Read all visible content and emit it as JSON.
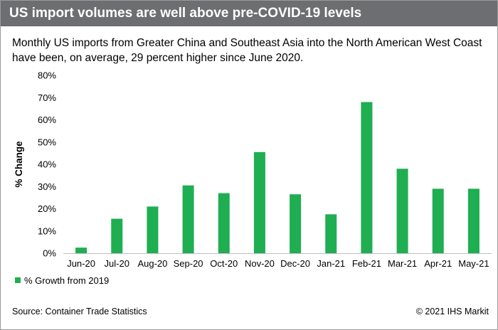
{
  "header": {
    "title": "US import volumes are well above pre-COVID-19 levels"
  },
  "subtitle": {
    "line1": "Monthly US imports from Greater China and Southeast Asia into the North American West Coast",
    "line2": "have been, on average, 29 percent higher since June 2020."
  },
  "footer": {
    "source": "Source: Container Trade Statistics",
    "copyright": "© 2021 IHS Markit"
  },
  "chart_data": {
    "type": "bar",
    "title": "",
    "xlabel": "",
    "ylabel": "% Change",
    "categories": [
      "Jun-20",
      "Jul-20",
      "Aug-20",
      "Sep-20",
      "Oct-20",
      "Nov-20",
      "Dec-20",
      "Jan-21",
      "Feb-21",
      "Mar-21",
      "Apr-21",
      "May-21"
    ],
    "series": [
      {
        "name": "% Growth from 2019",
        "color": "#1fae52",
        "values": [
          2.5,
          15.5,
          21.0,
          30.5,
          27.0,
          45.5,
          26.5,
          17.5,
          68.0,
          38.0,
          29.0,
          29.0
        ]
      }
    ],
    "ylim": [
      0,
      80
    ],
    "yticks": [
      0,
      10,
      20,
      30,
      40,
      50,
      60,
      70,
      80
    ],
    "ytick_suffix": "%",
    "grid": false,
    "legend": "bottom-left"
  }
}
